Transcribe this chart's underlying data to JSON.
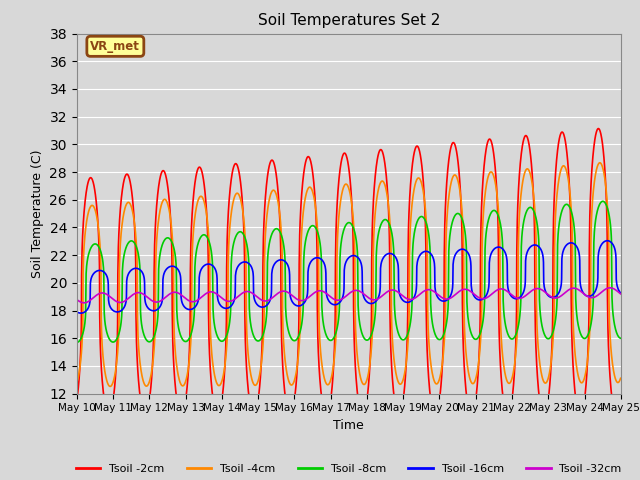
{
  "title": "Soil Temperatures Set 2",
  "xlabel": "Time",
  "ylabel": "Soil Temperature (C)",
  "ylim": [
    12,
    38
  ],
  "yticks": [
    12,
    14,
    16,
    18,
    20,
    22,
    24,
    26,
    28,
    30,
    32,
    34,
    36,
    38
  ],
  "background_color": "#d8d8d8",
  "plot_bg_color": "#d8d8d8",
  "annotation_text": "VR_met",
  "annotation_box_color": "#ffff99",
  "annotation_border_color": "#8B4513",
  "series_colors": {
    "Tsoil -2cm": "#ff0000",
    "Tsoil -4cm": "#ff8800",
    "Tsoil -8cm": "#00cc00",
    "Tsoil -16cm": "#0000ff",
    "Tsoil -32cm": "#cc00cc"
  },
  "n_days": 15,
  "start_day": 10,
  "samples_per_day": 144,
  "base_temp": 19.0,
  "trend_per_day": 0.12
}
